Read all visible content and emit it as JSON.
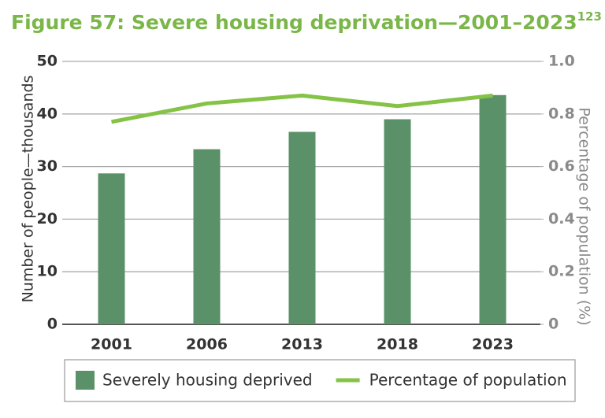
{
  "chart_data": {
    "type": "bar",
    "title": "Figure 57: Severe housing deprivation—2001–2023",
    "title_superscript": "123",
    "y_label": "Number of people—thousands",
    "y2_label": "Percentage of population (%)",
    "categories": [
      "2001",
      "2006",
      "2013",
      "2018",
      "2023"
    ],
    "series": [
      {
        "name": "Severely housing deprived",
        "type": "bar",
        "color": "#5b9169",
        "values": [
          28.7,
          33.3,
          36.6,
          39.0,
          43.6
        ]
      },
      {
        "name": "Percentage of population",
        "type": "line",
        "axis": "y2",
        "color": "#84c346",
        "values": [
          0.77,
          0.84,
          0.87,
          0.83,
          0.87
        ]
      }
    ],
    "ylim": [
      0,
      50
    ],
    "yticks": [
      0,
      10,
      20,
      30,
      40,
      50
    ],
    "y2lim": [
      0,
      1
    ],
    "y2ticks": [
      0,
      0.2,
      0.4,
      0.6,
      0.8,
      {
        "value": 1,
        "label": "1.0"
      }
    ],
    "grid": true
  }
}
